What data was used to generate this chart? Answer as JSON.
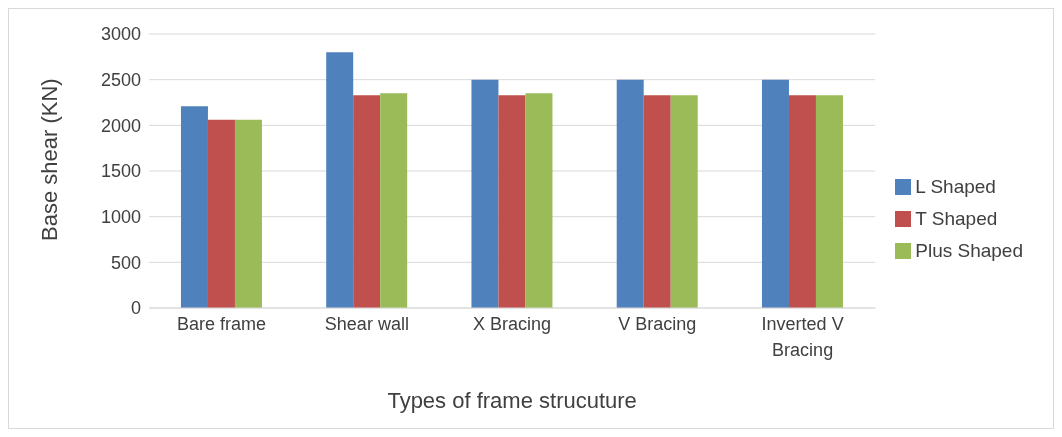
{
  "chart_data": {
    "type": "bar",
    "xlabel": "Types of frame strucuture",
    "ylabel": "Base shear (KN)",
    "categories": [
      "Bare frame",
      "Shear wall",
      "X Bracing",
      "V Bracing",
      "Inverted V Bracing"
    ],
    "series": [
      {
        "name": "L Shaped",
        "color": "#4f81bd",
        "values": [
          2210,
          2800,
          2500,
          2500,
          2500
        ]
      },
      {
        "name": "T Shaped",
        "color": "#c0504d",
        "values": [
          2060,
          2330,
          2330,
          2330,
          2330
        ]
      },
      {
        "name": "Plus Shaped",
        "color": "#9bbb59",
        "values": [
          2060,
          2350,
          2350,
          2330,
          2330
        ]
      }
    ],
    "ylim": [
      0,
      3000
    ],
    "yticks": [
      0,
      500,
      1000,
      1500,
      2000,
      2500,
      3000
    ],
    "grid": "y",
    "legend": "right"
  }
}
